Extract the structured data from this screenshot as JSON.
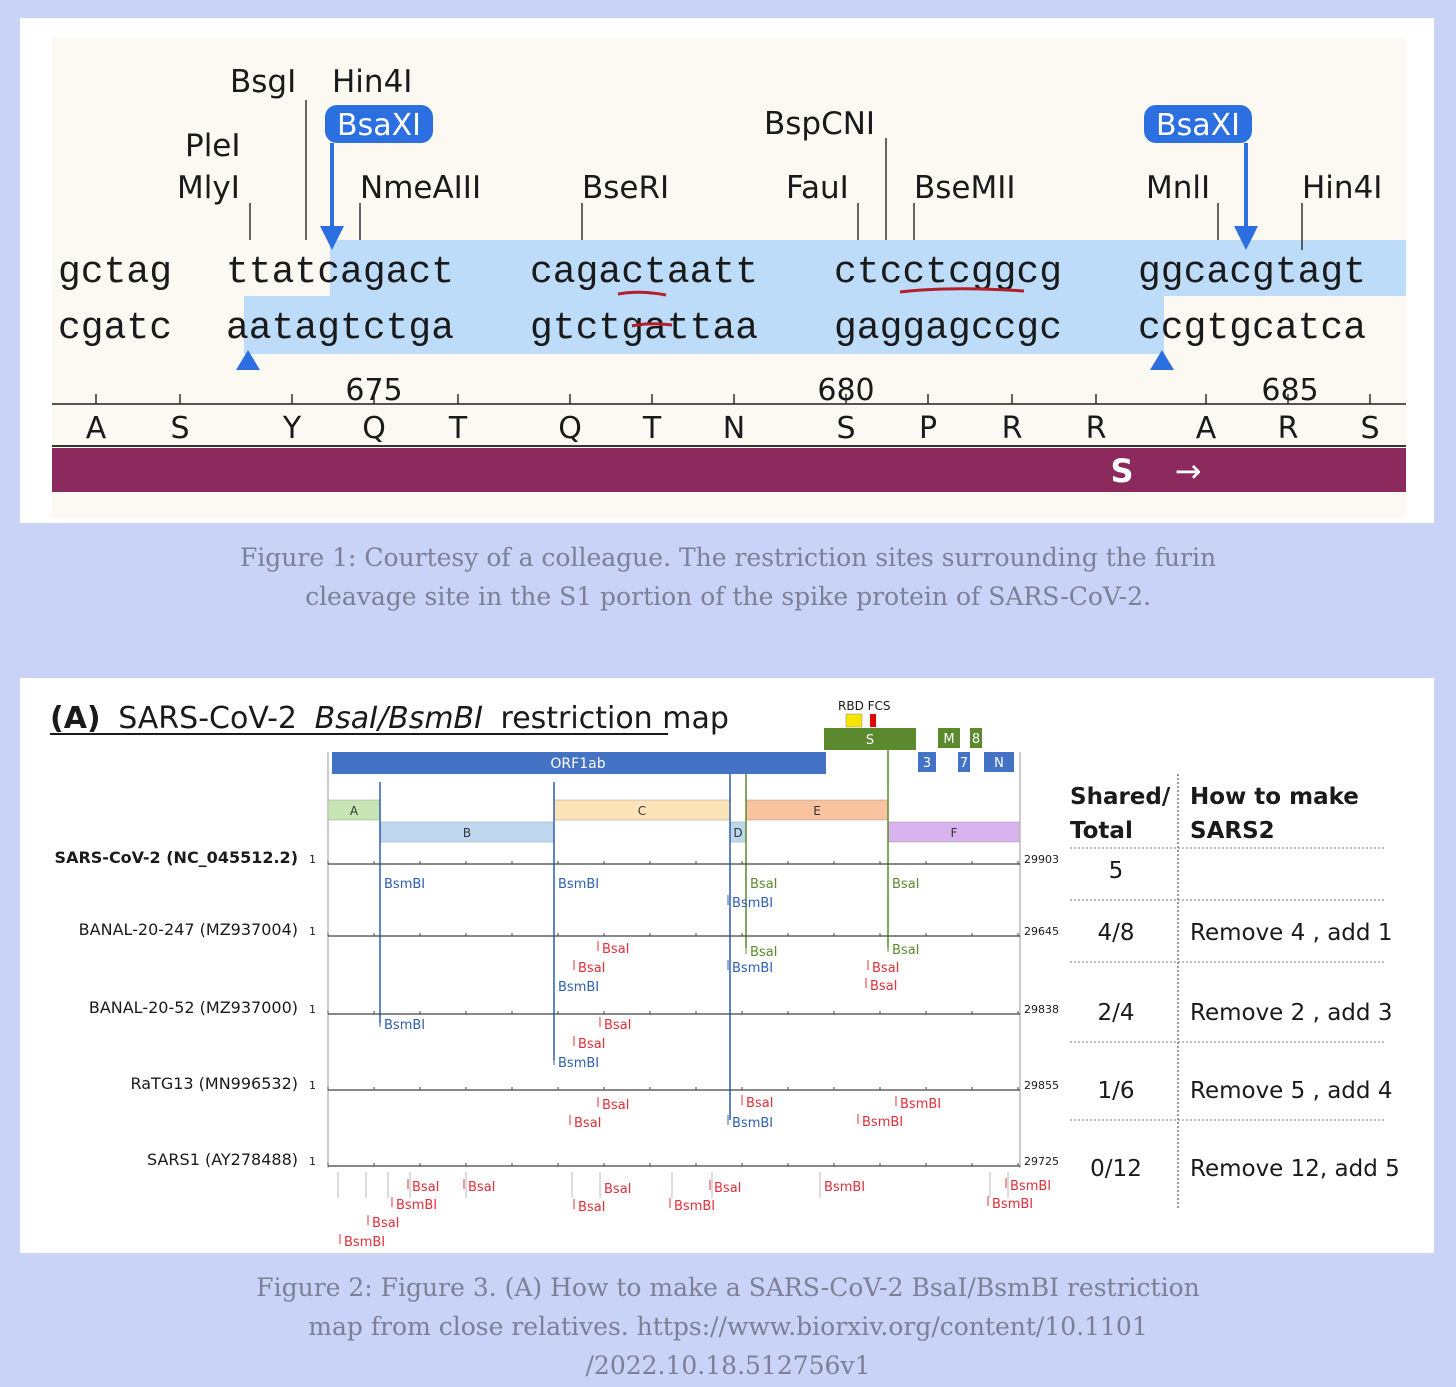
{
  "figure1": {
    "enzymes": {
      "bsgi": "BsgI",
      "hin4i_top": "Hin4I",
      "plei": "PleI",
      "mlyi": "MlyI",
      "bsaxi_left": "BsaXI",
      "nmeaiii": "NmeAIII",
      "bseri": "BseRI",
      "bspcni": "BspCNI",
      "faui": "FauI",
      "bsemii": "BseMII",
      "bsaxi_right": "BsaXI",
      "mnli": "MnlI",
      "hin4i_right": "Hin4I"
    },
    "top_strand": [
      "gctag",
      "ttatcagact",
      "cagactaatt",
      "ctcctcggcg",
      "ggcacgtagt"
    ],
    "bottom_strand": [
      "cgatc",
      "aatagtctga",
      "gtctgattaa",
      "gaggagccgc",
      "ccgtgcatca"
    ],
    "ruler": [
      "675",
      "680",
      "685"
    ],
    "amino_acids": [
      "A",
      "S",
      "Y",
      "Q",
      "T",
      "Q",
      "T",
      "N",
      "S",
      "P",
      "R",
      "R",
      "A",
      "R",
      "S"
    ],
    "feature_label": "S",
    "feature_arrow": "→",
    "colors": {
      "highlight": "#bcdcfa",
      "arrow": "#2c6fe0",
      "feature": "#8c2a5e",
      "underline": "#b3202a"
    }
  },
  "caption1": {
    "line1": "Figure 1: Courtesy of a colleague. The restriction sites surrounding the furin",
    "line2": "cleavage site in the S1 portion of the spike protein of SARS-CoV-2."
  },
  "figure2": {
    "title_prefix": "(A)",
    "title_main": "SARS-CoV-2",
    "title_italic": "BsaI/BsmBI",
    "title_suffix": "restriction map",
    "genome": {
      "orf1ab": "ORF1ab",
      "s": "S",
      "m": "M",
      "e8": "8",
      "g3": "3",
      "g7": "7",
      "n": "N",
      "rbd_fcs": "RBD FCS",
      "segments": [
        "A",
        "B",
        "C",
        "D",
        "E",
        "F"
      ]
    },
    "rows": [
      {
        "name": "SARS-CoV-2 (NC_045512.2)",
        "start": "1",
        "end": "29903",
        "shared": "5",
        "how": ""
      },
      {
        "name": "BANAL-20-247 (MZ937004)",
        "start": "1",
        "end": "29645",
        "shared": "4/8",
        "how": "Remove 4 , add 1"
      },
      {
        "name": "BANAL-20-52 (MZ937000)",
        "start": "1",
        "end": "29838",
        "shared": "2/4",
        "how": "Remove 2 , add 3"
      },
      {
        "name": "RaTG13  (MN996532)",
        "start": "1",
        "end": "29855",
        "shared": "1/6",
        "how": "Remove 5 , add 4"
      },
      {
        "name": "SARS1  (AY278488)",
        "start": "1",
        "end": "29725",
        "shared": "0/12",
        "how": "Remove 12, add 5"
      }
    ],
    "table_headers": {
      "shared_1": "Shared/",
      "shared_2": "Total",
      "how_1": "How to make",
      "how_2": "SARS2"
    },
    "site_labels": {
      "bsmbi": "BsmBI",
      "bsai": "BsaI"
    },
    "colors": {
      "orf1ab": "#4472c4",
      "s": "#5b8a2e",
      "bsmbi": "#2f5fb0",
      "bsai": "#e0303a"
    }
  },
  "caption2": {
    "line1": "Figure 2: Figure 3. (A) How to make a SARS-CoV-2 BsaI/BsmBI restriction",
    "line2": "map from close relatives. https://www.biorxiv.org/content/10.1101",
    "line3": "/2022.10.18.512756v1"
  }
}
